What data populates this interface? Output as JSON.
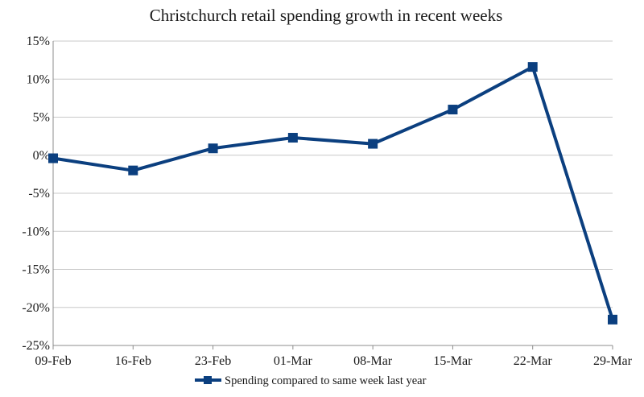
{
  "chart_data": {
    "type": "line",
    "title": "Christchurch retail spending growth in recent weeks",
    "xlabel": "",
    "ylabel": "",
    "categories": [
      "09-Feb",
      "16-Feb",
      "23-Feb",
      "01-Mar",
      "08-Mar",
      "15-Mar",
      "22-Mar",
      "29-Mar"
    ],
    "series": [
      {
        "name": "Spending compared to same week last year",
        "values": [
          -0.4,
          -2.0,
          0.9,
          2.3,
          1.5,
          6.0,
          11.6,
          -21.6
        ],
        "color": "#0B3F7F",
        "marker": "square"
      }
    ],
    "ylim": [
      -25,
      15
    ],
    "yticks": [
      15,
      10,
      5,
      0,
      -5,
      -10,
      -15,
      -20,
      -25
    ],
    "ytick_labels": [
      "15%",
      "10%",
      "5%",
      "0%",
      "-5%",
      "-10%",
      "-15%",
      "-20%",
      "-25%"
    ],
    "grid": true,
    "legend": "bottom"
  }
}
